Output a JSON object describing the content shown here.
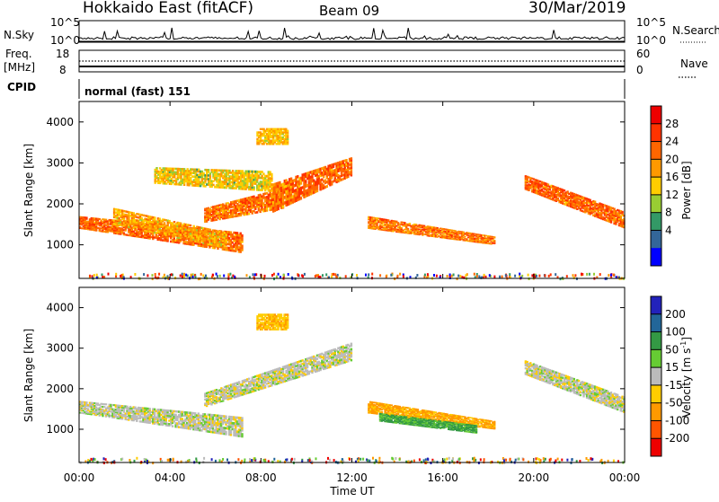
{
  "header": {
    "radar": "Hokkaido East (fitACF)",
    "beam": "Beam 09",
    "date": "30/Mar/2019"
  },
  "noise_panel": {
    "left_label": "N.Sky",
    "right_label": "N.Search",
    "ticks": [
      "10^5",
      "10^0"
    ]
  },
  "freq_panel": {
    "left_label_1": "Freq.",
    "left_label_2": "[MHz]",
    "left_ticks": [
      "18",
      "8"
    ],
    "right_label": "Nave",
    "right_ticks": [
      "60",
      "0"
    ]
  },
  "cpid": {
    "label": "CPID",
    "value": "normal (fast) 151"
  },
  "x_axis": {
    "ticks": [
      "00:00",
      "04:00",
      "08:00",
      "12:00",
      "16:00",
      "20:00",
      "00:00"
    ],
    "label": "Time UT"
  },
  "power_colorbar": {
    "label": "Power [dB]",
    "ticks": [
      "28",
      "24",
      "20",
      "16",
      "12",
      "8",
      "4"
    ],
    "colors": [
      "#ee0000",
      "#ff3300",
      "#ff6600",
      "#ff9900",
      "#ffcc00",
      "#99cc33",
      "#339966",
      "#336699",
      "#0000ff"
    ]
  },
  "velocity_colorbar": {
    "label": "Velocity [m s",
    "label_sup": "-1",
    "label_end": "]",
    "ticks": [
      "200",
      "100",
      "50",
      "15",
      "-15",
      "-50",
      "-100",
      "-200"
    ],
    "colors": [
      "#2222bb",
      "#226699",
      "#339944",
      "#66cc33",
      "#bbbbbb",
      "#ffcc00",
      "#ff9900",
      "#ff5500",
      "#ee0000"
    ]
  },
  "chart_data": [
    {
      "type": "heatmap",
      "title": "Power",
      "ylabel": "Slant Range [km]",
      "xlabel": "Time UT",
      "x_ticks": [
        "00:00",
        "04:00",
        "08:00",
        "12:00",
        "16:00",
        "20:00",
        "00:00"
      ],
      "y_ticks": [
        1000,
        2000,
        3000,
        4000
      ],
      "ylim": [
        180,
        4500
      ],
      "xlim_hours": [
        0,
        24
      ],
      "colorbar": "Power [dB]",
      "regions": [
        {
          "t": [
            0,
            7.2
          ],
          "r": [
            1400,
            800
          ],
          "r2": [
            1700,
            1300
          ],
          "value": 27
        },
        {
          "t": [
            1.5,
            6.5
          ],
          "r": [
            1500,
            900
          ],
          "r2": [
            1900,
            1300
          ],
          "value": 22
        },
        {
          "t": [
            5.5,
            9
          ],
          "r": [
            1550,
            1900
          ],
          "r2": [
            1900,
            2400
          ],
          "value": 26
        },
        {
          "t": [
            8.5,
            12
          ],
          "r": [
            1800,
            2700
          ],
          "r2": [
            2500,
            3150
          ],
          "value": 27
        },
        {
          "t": [
            7.8,
            9.2
          ],
          "r": [
            3450,
            3450
          ],
          "r2": [
            3850,
            3850
          ],
          "value": 20
        },
        {
          "t": [
            12.7,
            18.3
          ],
          "r": [
            1400,
            1000
          ],
          "r2": [
            1700,
            1200
          ],
          "value": 26
        },
        {
          "t": [
            19.6,
            24
          ],
          "r": [
            2350,
            1400
          ],
          "r2": [
            2700,
            1800
          ],
          "value": 27
        },
        {
          "t": [
            3.3,
            8.5
          ],
          "r": [
            2500,
            2300
          ],
          "r2": [
            2900,
            2800
          ],
          "value": 19
        }
      ]
    },
    {
      "type": "heatmap",
      "title": "Velocity",
      "ylabel": "Slant Range [km]",
      "xlabel": "Time UT",
      "x_ticks": [
        "00:00",
        "04:00",
        "08:00",
        "12:00",
        "16:00",
        "20:00",
        "00:00"
      ],
      "y_ticks": [
        1000,
        2000,
        3000,
        4000
      ],
      "ylim": [
        180,
        4500
      ],
      "xlim_hours": [
        0,
        24
      ],
      "colorbar": "Velocity [m s-1]",
      "regions": [
        {
          "t": [
            0,
            7.2
          ],
          "r": [
            1400,
            800
          ],
          "r2": [
            1700,
            1300
          ],
          "value": 0
        },
        {
          "t": [
            5.5,
            12
          ],
          "r": [
            1550,
            2700
          ],
          "r2": [
            1900,
            3150
          ],
          "value": 0
        },
        {
          "t": [
            12.7,
            18.3
          ],
          "r": [
            1400,
            1000
          ],
          "r2": [
            1700,
            1200
          ],
          "value": -60
        },
        {
          "t": [
            13.2,
            17.5
          ],
          "r": [
            1200,
            900
          ],
          "r2": [
            1400,
            1100
          ],
          "value": 60
        },
        {
          "t": [
            19.6,
            24
          ],
          "r": [
            2350,
            1400
          ],
          "r2": [
            2700,
            1800
          ],
          "value": 0
        },
        {
          "t": [
            7.8,
            9.2
          ],
          "r": [
            3450,
            3450
          ],
          "r2": [
            3850,
            3850
          ],
          "value": -40
        }
      ]
    }
  ]
}
